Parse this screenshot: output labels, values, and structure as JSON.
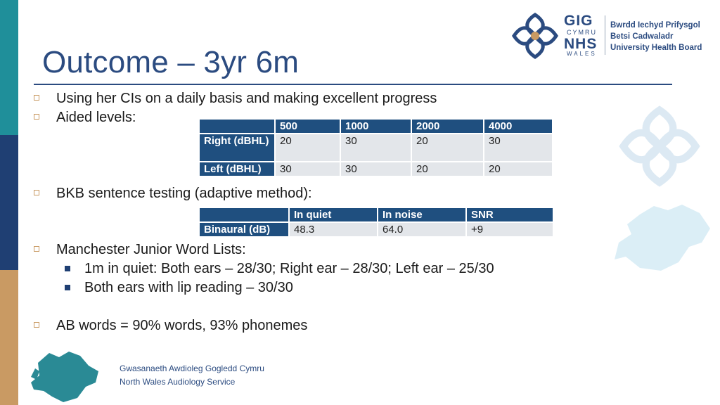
{
  "slide": {
    "title": "Outcome – 3yr 6m",
    "bullets": [
      "Using her CIs on a daily basis and making excellent progress",
      "Aided levels:",
      "BKB sentence testing (adaptive method):",
      "Manchester Junior Word Lists:",
      "AB words = 90% words, 93% phonemes"
    ],
    "sub_bullets": [
      "1m in quiet: Both ears – 28/30; Right ear – 28/30; Left ear – 25/30",
      "Both ears with lip reading – 30/30"
    ]
  },
  "aided_table": {
    "headers": [
      "",
      "500",
      "1000",
      "2000",
      "4000"
    ],
    "rows": [
      {
        "label": "Right (dBHL)",
        "values": [
          "20",
          "30",
          "20",
          "30"
        ]
      },
      {
        "label": "Left (dBHL)",
        "values": [
          "30",
          "30",
          "20",
          "20"
        ]
      }
    ]
  },
  "bkb_table": {
    "headers": [
      "",
      "In quiet",
      "In noise",
      "SNR"
    ],
    "rows": [
      {
        "label": "Binaural (dB)",
        "values": [
          "48.3",
          "64.0",
          "+9"
        ]
      }
    ]
  },
  "logo": {
    "gig": "GIG",
    "cymru": "CYMRU",
    "nhs": "NHS",
    "wales": "WALES",
    "board_lines": [
      "Bwrdd Iechyd Prifysgol",
      "Betsi Cadwaladr",
      "University Health Board"
    ]
  },
  "footer": {
    "welsh": "Gwasanaeth Awdioleg Gogledd Cymru",
    "english": "North Wales Audiology Service"
  },
  "colors": {
    "accent_navy": "#2b4b80",
    "teal": "#1f8f9a",
    "tan": "#c99a63",
    "table_header": "#1f4f7f"
  }
}
